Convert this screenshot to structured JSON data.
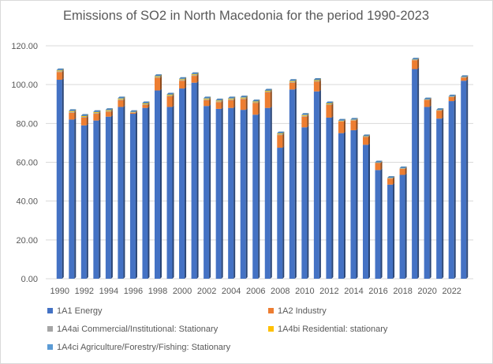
{
  "chart_data": {
    "type": "bar",
    "stacked": true,
    "title": "Emissions of SO2 in North Macedonia for the period 1990-2023",
    "xlabel": "",
    "ylabel": "",
    "ylim": [
      0,
      120
    ],
    "yticks": [
      "0.00",
      "20.00",
      "40.00",
      "60.00",
      "80.00",
      "100.00",
      "120.00"
    ],
    "grid": true,
    "legend_position": "bottom",
    "categories": [
      "1990",
      "1991",
      "1992",
      "1993",
      "1994",
      "1995",
      "1996",
      "1997",
      "1998",
      "1999",
      "2000",
      "2001",
      "2002",
      "2003",
      "2004",
      "2005",
      "2006",
      "2007",
      "2008",
      "2009",
      "2010",
      "2011",
      "2012",
      "2013",
      "2014",
      "2015",
      "2016",
      "2017",
      "2018",
      "2019",
      "2020",
      "2021",
      "2022",
      "2023"
    ],
    "xtick_labels": [
      "1990",
      "1992",
      "1994",
      "1996",
      "1998",
      "2000",
      "2002",
      "2004",
      "2006",
      "2008",
      "2010",
      "2012",
      "2014",
      "2016",
      "2018",
      "2020",
      "2022"
    ],
    "series": [
      {
        "name": "1A1 Energy",
        "color": "#4472c4",
        "values": [
          102.5,
          82,
          79,
          81.5,
          83.5,
          88.5,
          85,
          88,
          97,
          88.5,
          98,
          101,
          89,
          87.5,
          88,
          87,
          84.5,
          88,
          67.5,
          97.5,
          78,
          96.5,
          83,
          75,
          76.5,
          69,
          56,
          48.5,
          53.5,
          108,
          88.5,
          82.5,
          91.5,
          102
        ]
      },
      {
        "name": "1A2 Industry",
        "color": "#ed7d31",
        "values": [
          4,
          3.5,
          4,
          3.5,
          2.5,
          3.5,
          0.5,
          1.5,
          6.5,
          5.5,
          4,
          3.5,
          3,
          3.5,
          4,
          5.5,
          6,
          8,
          6.5,
          3.5,
          5.5,
          5,
          6.5,
          6,
          5,
          4,
          3.6,
          3.1,
          3.1,
          4.6,
          3.6,
          4.1,
          2.1,
          1.6
        ]
      },
      {
        "name": "1A4ai Commercial/Institutional: Stationary",
        "color": "#a5a5a5",
        "values": [
          0.4,
          0.4,
          0.4,
          0.4,
          0.4,
          0.4,
          0.2,
          0.4,
          0.4,
          0.4,
          0.4,
          0.4,
          0.4,
          0.4,
          0.4,
          0.4,
          0.4,
          0.4,
          0.4,
          0.4,
          0.4,
          0.4,
          0.4,
          0.2,
          0.2,
          0.2,
          0.2,
          0.2,
          0.2,
          0.2,
          0.2,
          0.2,
          0.2,
          0.2
        ]
      },
      {
        "name": "1A4bi Residential: stationary",
        "color": "#ffc000",
        "values": [
          0.4,
          0.4,
          0.4,
          0.4,
          0.4,
          0.4,
          0.2,
          0.4,
          0.4,
          0.4,
          0.4,
          0.4,
          0.4,
          0.4,
          0.4,
          0.4,
          0.4,
          0.4,
          0.4,
          0.4,
          0.4,
          0.4,
          0.4,
          0.2,
          0.2,
          0.2,
          0.1,
          0.1,
          0.1,
          0.1,
          0.1,
          0.1,
          0.1,
          0.1
        ]
      },
      {
        "name": "1A4ci Agriculture/Forestry/Fishing: Stationary",
        "color": "#5b9bd5",
        "values": [
          0.2,
          0.2,
          0.2,
          0.2,
          0.2,
          0.2,
          0.1,
          0.2,
          0.2,
          0.2,
          0.2,
          0.2,
          0.2,
          0.2,
          0.2,
          0.2,
          0.2,
          0.2,
          0.2,
          0.2,
          0.2,
          0.2,
          0.2,
          0.1,
          0.1,
          0.1,
          0.1,
          0.1,
          0.1,
          0.1,
          0.1,
          0.1,
          0.1,
          0.1
        ]
      }
    ]
  }
}
